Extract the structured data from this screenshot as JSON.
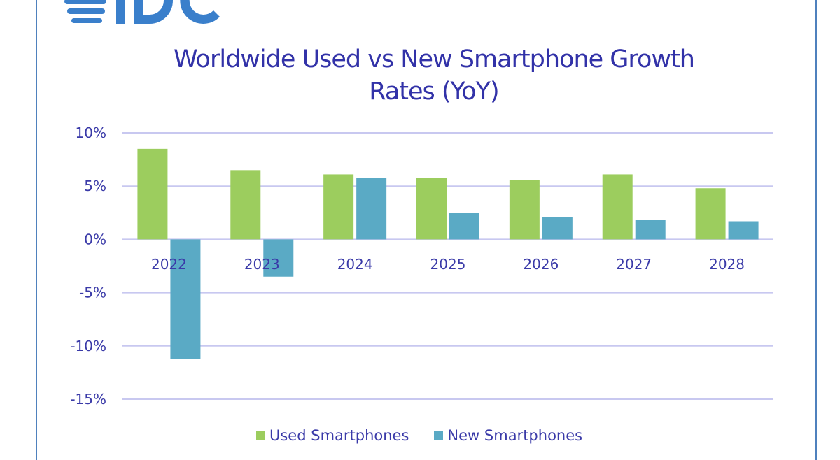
{
  "logo_text": "IDC",
  "colors": {
    "used": "#9ccd5e",
    "new": "#5aaac5",
    "grid": "#c8c8f0",
    "text": "#3a3aa8",
    "logo": "#3a7fcb",
    "frame": "#4f81bd"
  },
  "chart_data": {
    "type": "bar",
    "title_line1": "Worldwide Used vs New Smartphone Growth",
    "title_line2": "Rates (YoY)",
    "categories": [
      "2022",
      "2023",
      "2024",
      "2025",
      "2026",
      "2027",
      "2028"
    ],
    "series": [
      {
        "name": "Used Smartphones",
        "values": [
          8.5,
          6.5,
          6.1,
          5.8,
          5.6,
          6.1,
          4.8
        ]
      },
      {
        "name": "New Smartphones",
        "values": [
          -11.2,
          -3.5,
          5.8,
          2.5,
          2.1,
          1.8,
          1.7
        ]
      }
    ],
    "yticks": [
      10,
      5,
      0,
      -5,
      -10,
      -15
    ],
    "ytick_labels": [
      "10%",
      "5%",
      "0%",
      "-5%",
      "-10%",
      "-15%"
    ],
    "ylim": [
      -15,
      10
    ],
    "grid": true,
    "legend": "bottom"
  }
}
